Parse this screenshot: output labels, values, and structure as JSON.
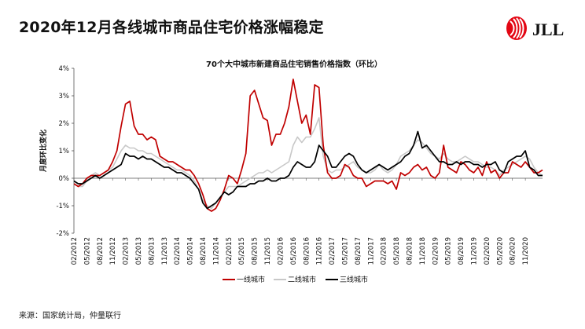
{
  "title": "2020年12月各线城市商品住宅价格涨幅稳定",
  "brand": {
    "name": "JLL",
    "color": "#e30613"
  },
  "source": "来源：国家统计局，仲量联行",
  "chart_data": {
    "type": "line",
    "title": "70个大中城市新建商品住宅销售价格指数（环比）",
    "ylabel": "月度环比变化",
    "xlabel": "",
    "ylim": [
      -2,
      4
    ],
    "yticks": [
      -2,
      -1,
      0,
      1,
      2,
      3,
      4
    ],
    "ytick_labels": [
      "-2%",
      "-1%",
      "0%",
      "1%",
      "2%",
      "3%",
      "4%"
    ],
    "x_start": "2012-02",
    "x_tick_labels": [
      "02/2012",
      "05/2012",
      "08/2012",
      "11/2012",
      "02/2013",
      "05/2013",
      "08/2013",
      "11/2013",
      "02/2014",
      "05/2014",
      "08/2014",
      "11/2014",
      "02/2015",
      "05/2015",
      "08/2015",
      "11/2015",
      "02/2016",
      "05/2016",
      "08/2016",
      "11/2016",
      "02/2017",
      "05/2017",
      "08/2017",
      "11/2017",
      "02/2018",
      "05/2018",
      "08/2018",
      "11/2018",
      "02/2019",
      "05/2019",
      "08/2019",
      "11/2019",
      "02/2020",
      "05/2020",
      "08/2020",
      "11/2020"
    ],
    "legend_position": "bottom",
    "grid": false,
    "series": [
      {
        "name": "一线城市",
        "color": "#c00000",
        "values": [
          -0.2,
          -0.3,
          -0.2,
          0.0,
          0.1,
          0.1,
          0.1,
          0.2,
          0.3,
          0.6,
          1.0,
          1.9,
          2.7,
          2.8,
          1.9,
          1.6,
          1.6,
          1.4,
          1.5,
          1.4,
          0.8,
          0.7,
          0.6,
          0.6,
          0.5,
          0.4,
          0.3,
          0.3,
          0.1,
          -0.2,
          -0.6,
          -1.1,
          -1.2,
          -1.1,
          -0.8,
          -0.4,
          0.1,
          0.0,
          -0.2,
          0.3,
          0.9,
          3.0,
          3.2,
          2.7,
          2.2,
          2.1,
          1.2,
          1.6,
          1.6,
          2.0,
          2.6,
          3.6,
          2.8,
          2.0,
          2.3,
          1.6,
          3.4,
          3.3,
          1.2,
          0.2,
          0.0,
          0.0,
          0.1,
          0.5,
          0.4,
          0.1,
          0.0,
          0.0,
          -0.3,
          -0.2,
          -0.1,
          -0.1,
          -0.1,
          -0.2,
          -0.1,
          -0.4,
          0.2,
          0.1,
          0.2,
          0.4,
          0.5,
          0.3,
          0.4,
          0.1,
          0.0,
          0.2,
          1.2,
          0.4,
          0.3,
          0.2,
          0.6,
          0.5,
          0.3,
          0.2,
          0.4,
          0.1,
          0.6,
          0.2,
          0.3,
          0.0,
          0.2,
          0.2,
          0.6,
          0.5,
          0.4,
          0.6,
          0.4,
          0.2,
          0.2,
          0.3
        ]
      },
      {
        "name": "二线城市",
        "color": "#c8c8c8",
        "values": [
          -0.2,
          -0.3,
          -0.3,
          -0.1,
          0.1,
          0.2,
          0.1,
          0.2,
          0.3,
          0.4,
          0.7,
          1.0,
          1.2,
          1.1,
          1.1,
          1.0,
          1.0,
          0.9,
          0.9,
          0.8,
          0.7,
          0.6,
          0.5,
          0.4,
          0.3,
          0.3,
          0.2,
          0.1,
          -0.1,
          -0.4,
          -0.8,
          -1.0,
          -1.1,
          -0.9,
          -0.7,
          -0.5,
          -0.3,
          -0.3,
          -0.3,
          -0.2,
          -0.1,
          0.0,
          0.1,
          0.2,
          0.2,
          0.3,
          0.2,
          0.3,
          0.4,
          0.5,
          0.6,
          1.2,
          1.5,
          1.3,
          1.5,
          1.5,
          1.8,
          2.2,
          0.8,
          0.3,
          0.2,
          0.3,
          0.3,
          0.4,
          0.5,
          0.6,
          0.4,
          0.3,
          0.2,
          0.2,
          0.3,
          0.5,
          0.3,
          0.2,
          0.3,
          0.5,
          0.8,
          0.9,
          1.0,
          1.2,
          1.4,
          1.3,
          1.1,
          0.9,
          0.8,
          0.7,
          0.9,
          0.7,
          0.6,
          0.6,
          0.7,
          0.8,
          0.7,
          0.6,
          0.6,
          0.5,
          0.4,
          0.4,
          0.3,
          0.1,
          0.3,
          0.4,
          0.5,
          0.6,
          0.7,
          0.8,
          0.7,
          0.4,
          0.2,
          0.1
        ]
      },
      {
        "name": "三线城市",
        "color": "#000000",
        "values": [
          -0.1,
          -0.2,
          -0.2,
          -0.1,
          0.0,
          0.1,
          0.0,
          0.1,
          0.2,
          0.3,
          0.4,
          0.5,
          0.9,
          0.8,
          0.8,
          0.7,
          0.8,
          0.7,
          0.7,
          0.6,
          0.5,
          0.4,
          0.4,
          0.3,
          0.2,
          0.2,
          0.1,
          0.0,
          -0.2,
          -0.4,
          -0.9,
          -1.1,
          -1.0,
          -0.9,
          -0.7,
          -0.5,
          -0.6,
          -0.5,
          -0.3,
          -0.3,
          -0.3,
          -0.2,
          -0.2,
          -0.1,
          -0.1,
          0.0,
          -0.1,
          -0.1,
          0.0,
          0.0,
          0.1,
          0.4,
          0.6,
          0.5,
          0.4,
          0.4,
          0.6,
          1.2,
          1.0,
          0.8,
          0.4,
          0.4,
          0.6,
          0.8,
          0.9,
          0.8,
          0.5,
          0.3,
          0.2,
          0.3,
          0.4,
          0.5,
          0.4,
          0.3,
          0.4,
          0.5,
          0.6,
          0.8,
          0.9,
          1.2,
          1.7,
          1.1,
          1.2,
          1.0,
          0.8,
          0.6,
          0.6,
          0.5,
          0.5,
          0.6,
          0.5,
          0.6,
          0.6,
          0.5,
          0.5,
          0.4,
          0.5,
          0.5,
          0.6,
          0.3,
          0.2,
          0.6,
          0.7,
          0.8,
          0.8,
          1.0,
          0.4,
          0.3,
          0.1,
          0.1
        ]
      }
    ]
  }
}
